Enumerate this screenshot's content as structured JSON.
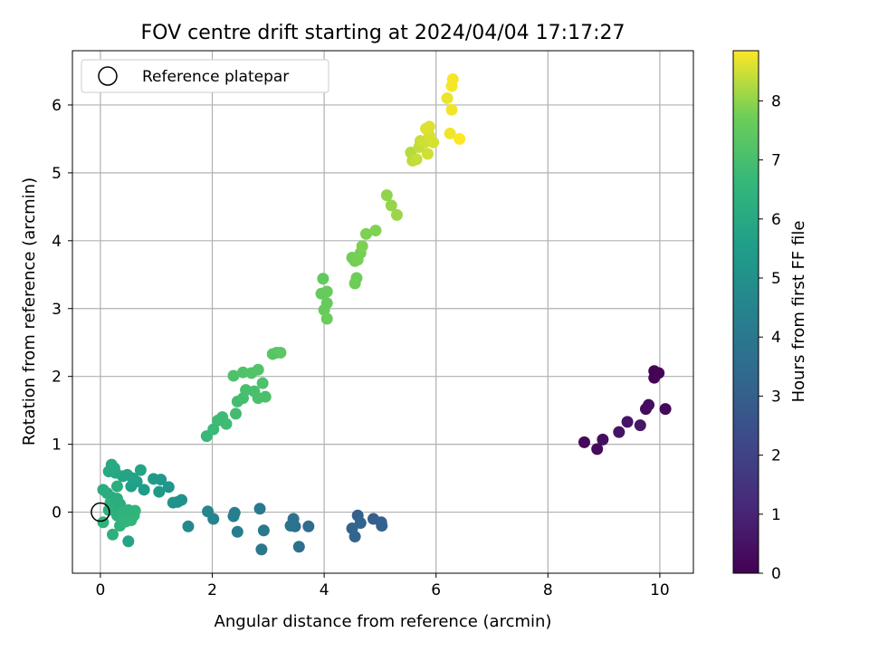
{
  "chart_data": {
    "type": "scatter",
    "title": "FOV centre drift starting at 2024/04/04 17:17:27",
    "xlabel": "Angular distance from reference (arcmin)",
    "ylabel": "Rotation from reference (arcmin)",
    "xlim": [
      -0.5,
      10.6
    ],
    "ylim": [
      -0.9,
      6.8
    ],
    "xticks": [
      0,
      2,
      4,
      6,
      8,
      10
    ],
    "yticks": [
      0,
      1,
      2,
      3,
      4,
      5,
      6
    ],
    "grid": true,
    "legend": {
      "placement": "top-left",
      "entries": [
        "Reference platepar"
      ]
    },
    "reference_point": {
      "x": 0,
      "y": 0,
      "marker": "hollow-circle"
    },
    "colorbar": {
      "label": "Hours from first FF file",
      "range": [
        0,
        8.85
      ],
      "ticks": [
        0,
        1,
        2,
        3,
        4,
        5,
        6,
        7,
        8
      ],
      "colormap": "viridis"
    },
    "series": [
      {
        "values": [
          {
            "x": 8.65,
            "y": 1.03,
            "c": 0.2
          },
          {
            "x": 8.88,
            "y": 0.93,
            "c": 0.3
          },
          {
            "x": 8.98,
            "y": 1.07,
            "c": 0.4
          },
          {
            "x": 9.27,
            "y": 1.18,
            "c": 0.5
          },
          {
            "x": 9.42,
            "y": 1.33,
            "c": 0.55
          },
          {
            "x": 9.65,
            "y": 1.28,
            "c": 0.6
          },
          {
            "x": 9.75,
            "y": 1.52,
            "c": 0.3
          },
          {
            "x": 9.8,
            "y": 1.58,
            "c": 0.35
          },
          {
            "x": 9.9,
            "y": 2.08,
            "c": 0.1
          },
          {
            "x": 9.9,
            "y": 1.98,
            "c": 0.05
          },
          {
            "x": 9.98,
            "y": 2.05,
            "c": 0.1
          },
          {
            "x": 10.1,
            "y": 1.52,
            "c": 0.2
          },
          {
            "x": 4.88,
            "y": -0.1,
            "c": 3.0
          },
          {
            "x": 5.02,
            "y": -0.15,
            "c": 3.0
          },
          {
            "x": 5.03,
            "y": -0.2,
            "c": 3.1
          },
          {
            "x": 4.6,
            "y": -0.05,
            "c": 3.1
          },
          {
            "x": 4.65,
            "y": -0.16,
            "c": 3.2
          },
          {
            "x": 4.5,
            "y": -0.24,
            "c": 3.2
          },
          {
            "x": 4.55,
            "y": -0.36,
            "c": 3.3
          },
          {
            "x": 3.72,
            "y": -0.21,
            "c": 3.5
          },
          {
            "x": 3.55,
            "y": -0.51,
            "c": 3.6
          },
          {
            "x": 3.48,
            "y": -0.21,
            "c": 3.6
          },
          {
            "x": 3.45,
            "y": -0.1,
            "c": 3.7
          },
          {
            "x": 3.4,
            "y": -0.2,
            "c": 3.8
          },
          {
            "x": 2.92,
            "y": -0.27,
            "c": 4.0
          },
          {
            "x": 2.88,
            "y": -0.55,
            "c": 4.0
          },
          {
            "x": 2.85,
            "y": 0.05,
            "c": 4.1
          },
          {
            "x": 2.45,
            "y": -0.29,
            "c": 4.2
          },
          {
            "x": 2.4,
            "y": -0.01,
            "c": 4.3
          },
          {
            "x": 2.38,
            "y": -0.06,
            "c": 4.3
          },
          {
            "x": 2.02,
            "y": -0.1,
            "c": 4.5
          },
          {
            "x": 1.92,
            "y": 0.01,
            "c": 4.6
          },
          {
            "x": 1.57,
            "y": -0.21,
            "c": 4.7
          },
          {
            "x": 1.45,
            "y": 0.18,
            "c": 5.0
          },
          {
            "x": 1.38,
            "y": 0.15,
            "c": 5.0
          },
          {
            "x": 1.3,
            "y": 0.14,
            "c": 5.1
          },
          {
            "x": 1.22,
            "y": 0.37,
            "c": 5.2
          },
          {
            "x": 1.05,
            "y": 0.3,
            "c": 5.3
          },
          {
            "x": 1.08,
            "y": 0.48,
            "c": 5.3
          },
          {
            "x": 0.95,
            "y": 0.49,
            "c": 5.4
          },
          {
            "x": 0.78,
            "y": 0.33,
            "c": 5.5
          },
          {
            "x": 0.72,
            "y": 0.62,
            "c": 5.8
          },
          {
            "x": 0.65,
            "y": 0.45,
            "c": 5.6
          },
          {
            "x": 0.55,
            "y": 0.38,
            "c": 5.6
          },
          {
            "x": 0.58,
            "y": 0.5,
            "c": 5.7
          },
          {
            "x": 0.48,
            "y": 0.55,
            "c": 5.8
          },
          {
            "x": 0.4,
            "y": 0.53,
            "c": 5.8
          },
          {
            "x": 0.27,
            "y": 0.58,
            "c": 5.9
          },
          {
            "x": 0.2,
            "y": 0.7,
            "c": 6.0
          },
          {
            "x": 0.25,
            "y": 0.65,
            "c": 6.0
          },
          {
            "x": 0.15,
            "y": 0.6,
            "c": 6.0
          },
          {
            "x": 0.05,
            "y": 0.33,
            "c": 6.1
          },
          {
            "x": 0.12,
            "y": 0.28,
            "c": 6.1
          },
          {
            "x": 0.2,
            "y": 0.22,
            "c": 6.1
          },
          {
            "x": 0.3,
            "y": 0.38,
            "c": 6.2
          },
          {
            "x": 0.35,
            "y": 0.12,
            "c": 6.2
          },
          {
            "x": 0.25,
            "y": 0.08,
            "c": 6.2
          },
          {
            "x": 0.18,
            "y": 0.14,
            "c": 6.3
          },
          {
            "x": 0.15,
            "y": 0.03,
            "c": 6.3
          },
          {
            "x": 0.3,
            "y": -0.05,
            "c": 6.3
          },
          {
            "x": 0.05,
            "y": -0.15,
            "c": 6.4
          },
          {
            "x": 0.4,
            "y": -0.1,
            "c": 6.4
          },
          {
            "x": 0.35,
            "y": -0.2,
            "c": 6.4
          },
          {
            "x": 0.45,
            "y": -0.14,
            "c": 6.5
          },
          {
            "x": 0.55,
            "y": -0.12,
            "c": 6.5
          },
          {
            "x": 0.6,
            "y": -0.05,
            "c": 6.5
          },
          {
            "x": 0.62,
            "y": 0.02,
            "c": 6.5
          },
          {
            "x": 0.5,
            "y": 0.03,
            "c": 6.4
          },
          {
            "x": 0.4,
            "y": 0.0,
            "c": 6.4
          },
          {
            "x": 0.22,
            "y": -0.33,
            "c": 6.3
          },
          {
            "x": 0.5,
            "y": -0.43,
            "c": 5.8
          },
          {
            "x": 0.3,
            "y": 0.2,
            "c": 6.2
          },
          {
            "x": 1.9,
            "y": 1.12,
            "c": 6.7
          },
          {
            "x": 2.02,
            "y": 1.22,
            "c": 6.75
          },
          {
            "x": 2.1,
            "y": 1.35,
            "c": 6.8
          },
          {
            "x": 2.18,
            "y": 1.4,
            "c": 6.8
          },
          {
            "x": 2.25,
            "y": 1.3,
            "c": 6.85
          },
          {
            "x": 2.42,
            "y": 1.45,
            "c": 6.9
          },
          {
            "x": 2.45,
            "y": 1.63,
            "c": 6.9
          },
          {
            "x": 2.55,
            "y": 1.68,
            "c": 6.95
          },
          {
            "x": 2.6,
            "y": 1.8,
            "c": 7.0
          },
          {
            "x": 2.75,
            "y": 1.78,
            "c": 7.0
          },
          {
            "x": 2.82,
            "y": 1.68,
            "c": 7.05
          },
          {
            "x": 2.95,
            "y": 1.7,
            "c": 7.05
          },
          {
            "x": 2.9,
            "y": 1.9,
            "c": 7.1
          },
          {
            "x": 2.38,
            "y": 2.01,
            "c": 7.1
          },
          {
            "x": 2.55,
            "y": 2.06,
            "c": 7.15
          },
          {
            "x": 2.7,
            "y": 2.05,
            "c": 7.2
          },
          {
            "x": 2.82,
            "y": 2.1,
            "c": 7.2
          },
          {
            "x": 3.08,
            "y": 2.33,
            "c": 7.3
          },
          {
            "x": 3.15,
            "y": 2.35,
            "c": 7.3
          },
          {
            "x": 3.22,
            "y": 2.35,
            "c": 7.35
          },
          {
            "x": 3.98,
            "y": 3.44,
            "c": 7.5
          },
          {
            "x": 3.95,
            "y": 3.22,
            "c": 7.55
          },
          {
            "x": 4.05,
            "y": 3.25,
            "c": 7.6
          },
          {
            "x": 4.05,
            "y": 3.08,
            "c": 7.6
          },
          {
            "x": 4.0,
            "y": 2.98,
            "c": 7.6
          },
          {
            "x": 4.05,
            "y": 2.85,
            "c": 7.65
          },
          {
            "x": 4.55,
            "y": 3.37,
            "c": 7.7
          },
          {
            "x": 4.58,
            "y": 3.45,
            "c": 7.7
          },
          {
            "x": 4.5,
            "y": 3.75,
            "c": 7.75
          },
          {
            "x": 4.55,
            "y": 3.7,
            "c": 7.75
          },
          {
            "x": 4.6,
            "y": 3.72,
            "c": 7.8
          },
          {
            "x": 4.65,
            "y": 3.82,
            "c": 7.8
          },
          {
            "x": 4.68,
            "y": 3.92,
            "c": 7.85
          },
          {
            "x": 4.75,
            "y": 4.1,
            "c": 7.85
          },
          {
            "x": 4.92,
            "y": 4.15,
            "c": 7.9
          },
          {
            "x": 5.12,
            "y": 4.67,
            "c": 8.0
          },
          {
            "x": 5.2,
            "y": 4.52,
            "c": 8.05
          },
          {
            "x": 5.3,
            "y": 4.38,
            "c": 8.1
          },
          {
            "x": 5.55,
            "y": 5.3,
            "c": 8.3
          },
          {
            "x": 5.58,
            "y": 5.18,
            "c": 8.35
          },
          {
            "x": 5.65,
            "y": 5.2,
            "c": 8.4
          },
          {
            "x": 5.7,
            "y": 5.38,
            "c": 8.4
          },
          {
            "x": 5.72,
            "y": 5.47,
            "c": 8.45
          },
          {
            "x": 5.8,
            "y": 5.45,
            "c": 8.5
          },
          {
            "x": 5.85,
            "y": 5.28,
            "c": 8.5
          },
          {
            "x": 5.95,
            "y": 5.45,
            "c": 8.55
          },
          {
            "x": 5.88,
            "y": 5.55,
            "c": 8.55
          },
          {
            "x": 5.82,
            "y": 5.65,
            "c": 8.6
          },
          {
            "x": 5.88,
            "y": 5.68,
            "c": 8.6
          },
          {
            "x": 6.2,
            "y": 6.1,
            "c": 8.7
          },
          {
            "x": 6.25,
            "y": 5.58,
            "c": 8.75
          },
          {
            "x": 6.28,
            "y": 5.93,
            "c": 8.75
          },
          {
            "x": 6.28,
            "y": 6.28,
            "c": 8.8
          },
          {
            "x": 6.3,
            "y": 6.38,
            "c": 8.8
          },
          {
            "x": 6.42,
            "y": 5.5,
            "c": 8.85
          }
        ]
      }
    ]
  }
}
